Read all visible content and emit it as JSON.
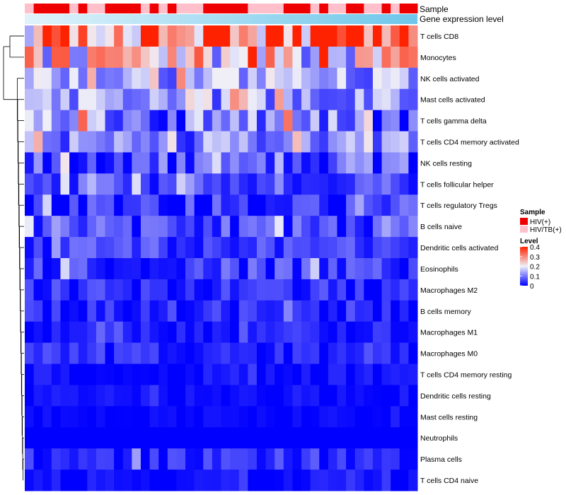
{
  "chart_data": {
    "type": "heatmap",
    "title": "",
    "rows": [
      "T cells CD8",
      "Monocytes",
      "NK cells activated",
      "Mast cells activated",
      "T cells gamma delta",
      "T cells CD4 memory activated",
      "NK cells resting",
      "T cells follicular helper",
      "T cells regulatory  Tregs",
      "B cells naive",
      "Dendritic cells activated",
      "Eosinophils",
      "Macrophages M2",
      "B cells memory",
      "Macrophages M1",
      "Macrophages M0",
      "T cells CD4 memory resting",
      "Dendritic cells resting",
      "Mast cells resting",
      "Neutrophils",
      "Plasma cells",
      "T cells CD4 naive"
    ],
    "row_means": [
      0.33,
      0.21,
      0.13,
      0.12,
      0.09,
      0.1,
      0.06,
      0.07,
      0.04,
      0.05,
      0.05,
      0.04,
      0.03,
      0.03,
      0.02,
      0.03,
      0.01,
      0.01,
      0.005,
      0.0,
      0.03,
      0.01
    ],
    "row_noise": [
      0.12,
      0.09,
      0.05,
      0.05,
      0.07,
      0.05,
      0.05,
      0.04,
      0.04,
      0.04,
      0.03,
      0.04,
      0.03,
      0.03,
      0.02,
      0.025,
      0.015,
      0.012,
      0.008,
      0.0,
      0.03,
      0.015
    ],
    "n_samples": 44,
    "annotation_tracks": [
      {
        "name": "Sample",
        "categories": [
          "HIV(+)",
          "HIV/TB(+)"
        ],
        "colors": [
          "#ee0000",
          "#ffc0cb"
        ],
        "values": [
          1,
          0,
          0,
          0,
          0,
          1,
          0,
          1,
          1,
          0,
          0,
          0,
          0,
          1,
          0,
          1,
          0,
          1,
          1,
          1,
          0,
          0,
          0,
          0,
          0,
          1,
          1,
          1,
          1,
          0,
          0,
          0,
          1,
          0,
          1,
          1,
          0,
          0,
          1,
          1,
          0,
          1,
          0,
          0
        ]
      },
      {
        "name": "Gene expression level",
        "gradient": [
          "#e0f3fb",
          "#6ec6ea"
        ]
      }
    ],
    "legend": {
      "sample_title": "Sample",
      "sample_items": [
        "HIV(+)",
        "HIV/TB(+)"
      ],
      "level_title": "Level",
      "level_ticks": [
        "0.4",
        "0.3",
        "0.2",
        "0.1",
        "0"
      ],
      "level_range": [
        0,
        0.4
      ],
      "colors": {
        "low": "#0000ff",
        "mid": "#f5f5f5",
        "high": "#ff2200"
      },
      "placement": "right"
    }
  }
}
